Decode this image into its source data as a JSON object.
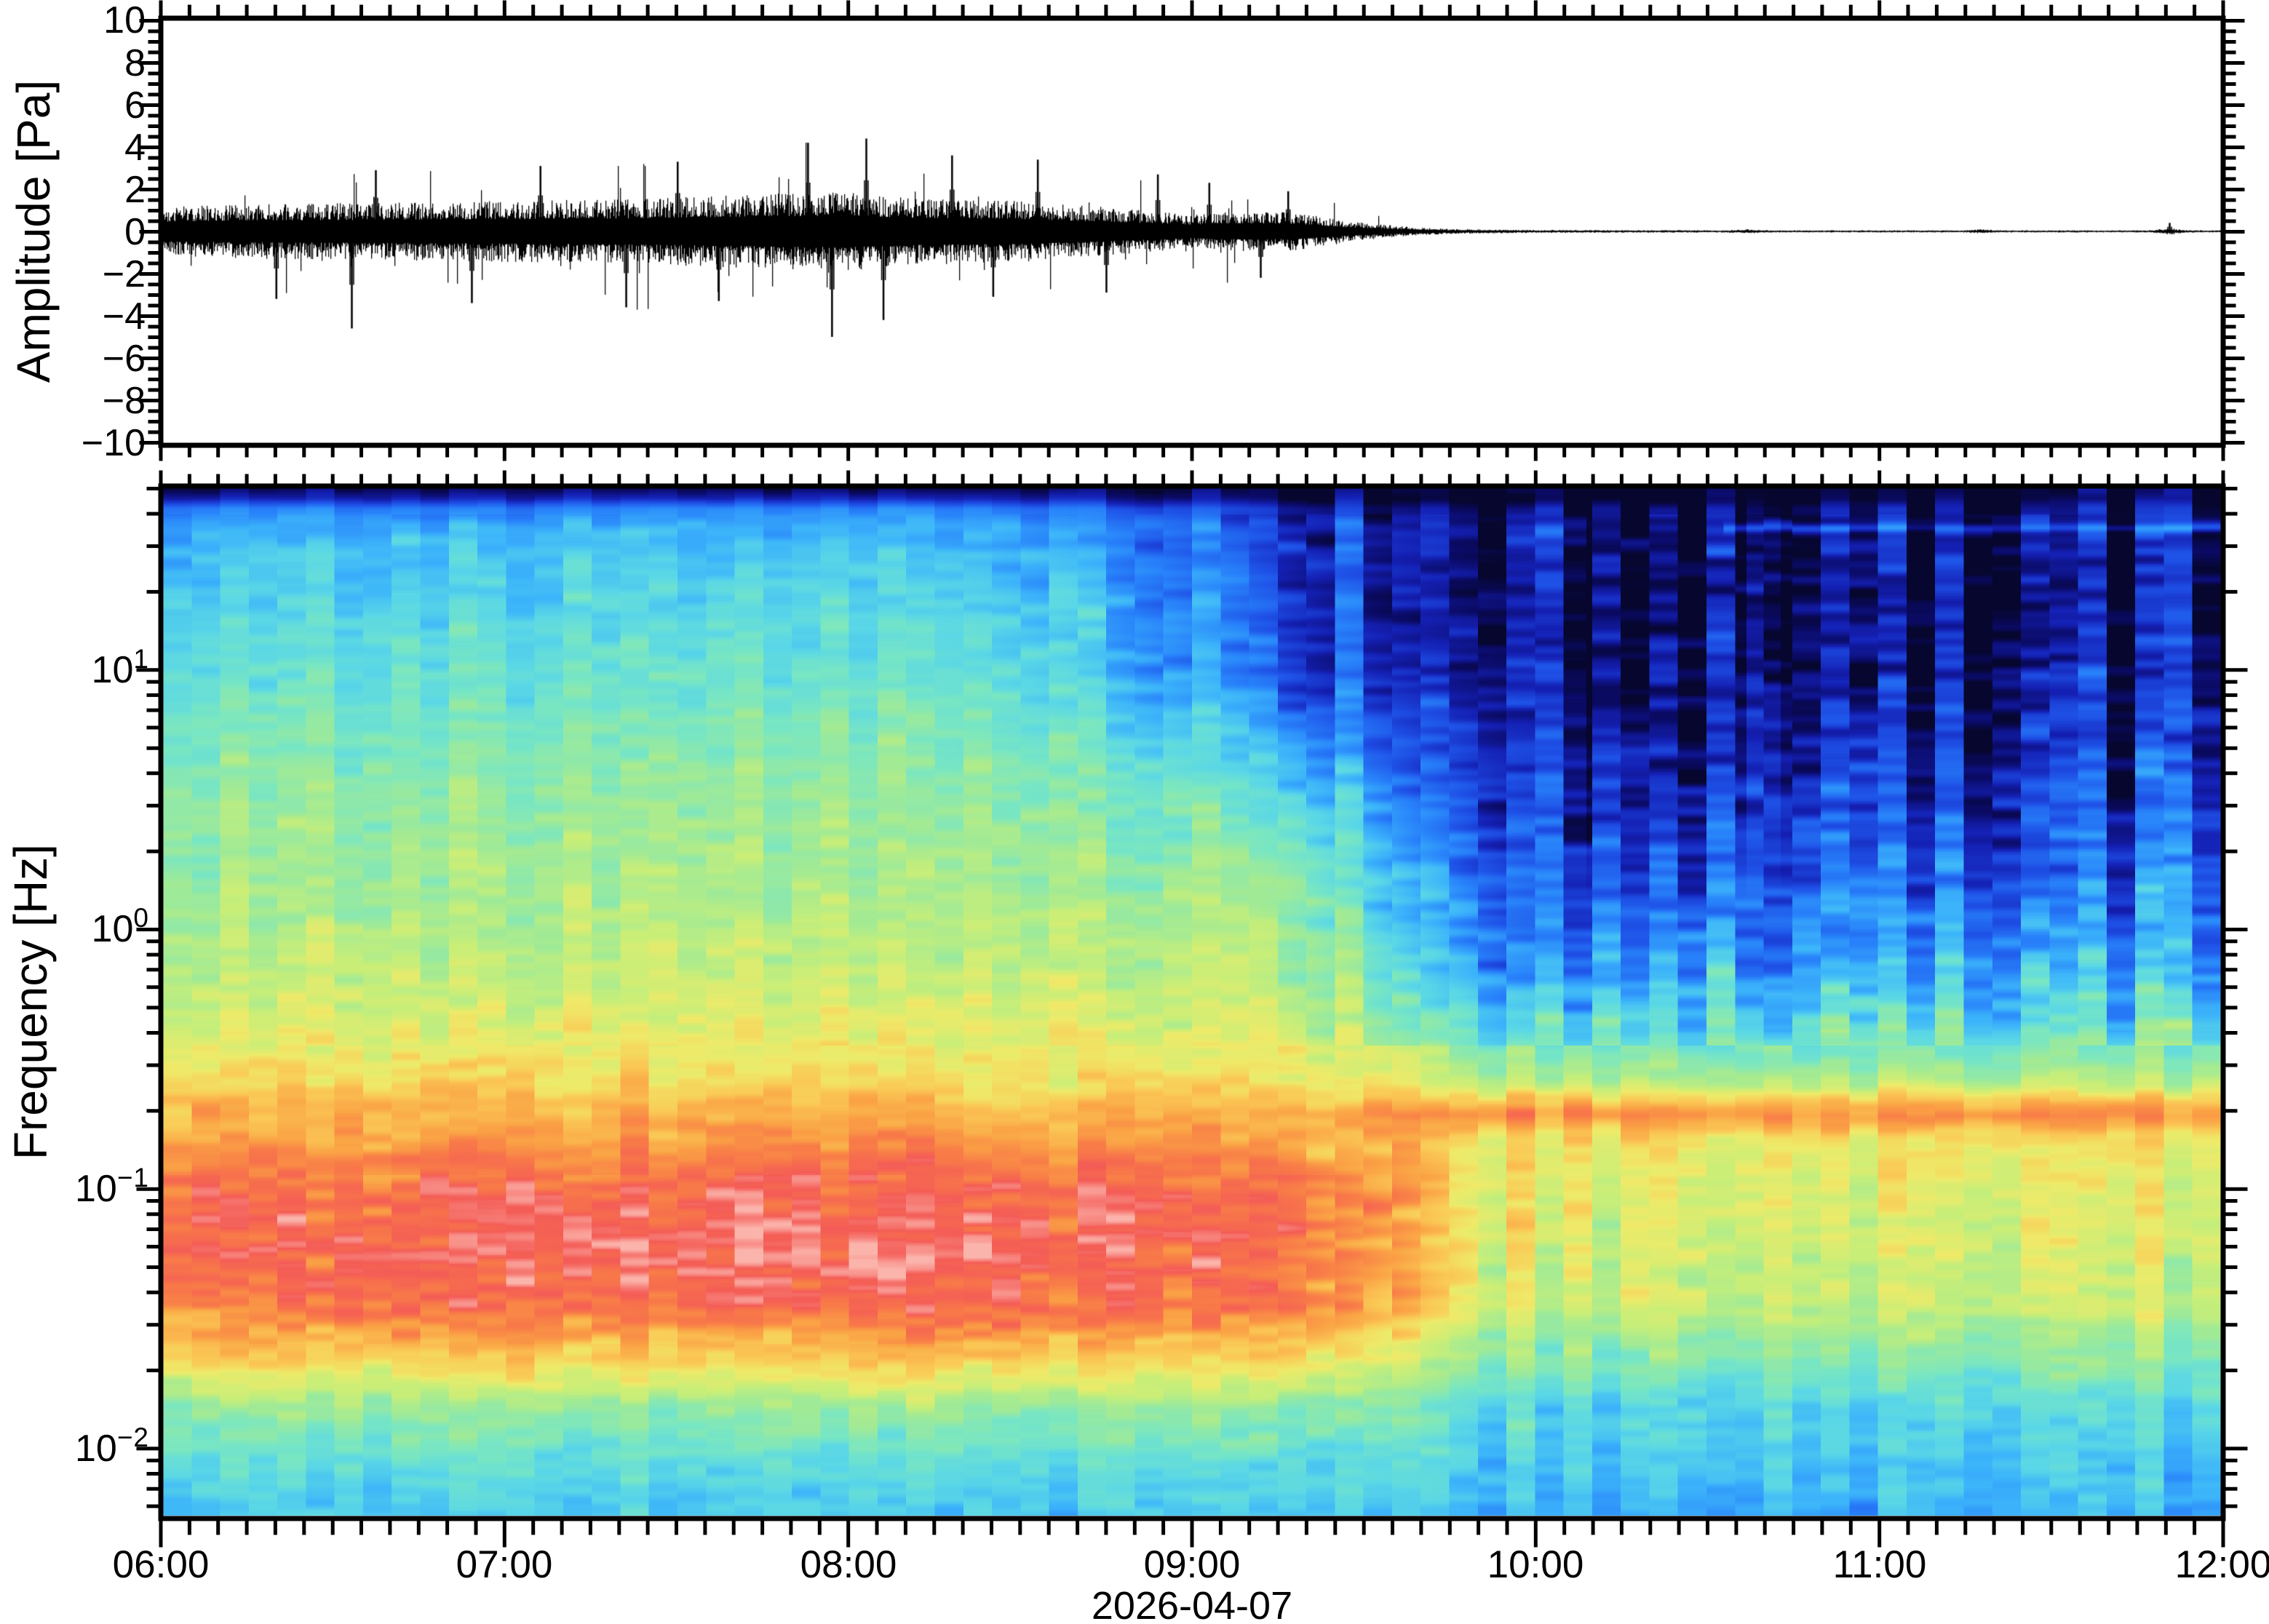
{
  "figure": {
    "background": "#ffffff",
    "frame_color": "#000000",
    "date_label": "2026-04-07"
  },
  "top_panel": {
    "ylabel": "Amplitude [Pa]",
    "ylim": [
      -10,
      10
    ],
    "ytick_major_step": 2,
    "ytick_minor_step": 0.5,
    "yticks": [
      {
        "v": 10,
        "label": "10"
      },
      {
        "v": 8,
        "label": "8"
      },
      {
        "v": 6,
        "label": "6"
      },
      {
        "v": 4,
        "label": "4"
      },
      {
        "v": 2,
        "label": "2"
      },
      {
        "v": 0,
        "label": "0"
      },
      {
        "v": -2,
        "label": "−2"
      },
      {
        "v": -4,
        "label": "−4"
      },
      {
        "v": -6,
        "label": "−6"
      },
      {
        "v": -8,
        "label": "−8"
      },
      {
        "v": -10,
        "label": "−10"
      }
    ]
  },
  "bottom_panel": {
    "ylabel": "Frequency [Hz]",
    "freq_min_hz": 0.0055,
    "freq_max_hz": 50,
    "scale": "log",
    "yticks": [
      {
        "f": 10,
        "base": "10",
        "exp": "1"
      },
      {
        "f": 1,
        "base": "10",
        "exp": "0"
      },
      {
        "f": 0.1,
        "base": "10",
        "exp": "−1"
      },
      {
        "f": 0.01,
        "base": "10",
        "exp": "−2"
      }
    ]
  },
  "x_axis": {
    "start_hour": 6,
    "end_hour": 12,
    "minor_step_minutes": 5,
    "ticks": [
      {
        "h": 6,
        "label": "06:00"
      },
      {
        "h": 7,
        "label": "07:00"
      },
      {
        "h": 8,
        "label": "08:00"
      },
      {
        "h": 9,
        "label": "09:00"
      },
      {
        "h": 10,
        "label": "10:00"
      },
      {
        "h": 11,
        "label": "11:00"
      },
      {
        "h": 12,
        "label": "12:00"
      }
    ],
    "date_label": "2026-04-07"
  },
  "chart_data": [
    {
      "type": "line",
      "name": "infrasound-waveform",
      "ylabel": "Amplitude [Pa]",
      "x_unit": "hour_of_day",
      "x_range": [
        6,
        12
      ],
      "y_range": [
        -10,
        10
      ],
      "line_color": "#000000",
      "envelope_pa": [
        [
          6.0,
          1.15
        ],
        [
          6.25,
          1.3
        ],
        [
          6.6,
          1.35
        ],
        [
          7.0,
          1.45
        ],
        [
          7.4,
          1.55
        ],
        [
          7.8,
          1.8
        ],
        [
          8.0,
          1.85
        ],
        [
          8.2,
          1.6
        ],
        [
          8.5,
          1.45
        ],
        [
          8.75,
          1.15
        ],
        [
          9.0,
          0.8
        ],
        [
          9.15,
          0.95
        ],
        [
          9.3,
          0.9
        ],
        [
          9.45,
          0.5
        ],
        [
          9.6,
          0.25
        ],
        [
          9.75,
          0.12
        ],
        [
          10.0,
          0.07
        ],
        [
          10.5,
          0.055
        ],
        [
          11.0,
          0.05
        ],
        [
          11.5,
          0.05
        ],
        [
          12.0,
          0.05
        ]
      ],
      "spikes_pa": [
        [
          6.33,
          -3.2
        ],
        [
          6.55,
          -4.6
        ],
        [
          6.62,
          2.9
        ],
        [
          6.9,
          -3.4
        ],
        [
          7.1,
          3.1
        ],
        [
          7.35,
          -3.6
        ],
        [
          7.5,
          3.3
        ],
        [
          7.62,
          -3.3
        ],
        [
          7.88,
          4.2
        ],
        [
          7.95,
          -5.0
        ],
        [
          8.05,
          4.4
        ],
        [
          8.1,
          -4.2
        ],
        [
          8.3,
          3.6
        ],
        [
          8.42,
          -3.1
        ],
        [
          8.55,
          3.4
        ],
        [
          8.75,
          -2.9
        ],
        [
          8.9,
          2.7
        ],
        [
          9.05,
          2.3
        ],
        [
          9.2,
          -2.2
        ],
        [
          9.28,
          1.9
        ],
        [
          11.85,
          0.4
        ]
      ],
      "micro_bursts": [
        [
          10.62,
          0.05
        ],
        [
          11.3,
          0.05
        ],
        [
          11.85,
          0.1
        ]
      ]
    },
    {
      "type": "heatmap",
      "name": "spectrogram",
      "ylabel": "Frequency [Hz]",
      "x_unit": "hour_of_day",
      "x_range": [
        6,
        12
      ],
      "freq_range_hz": [
        0.0055,
        50
      ],
      "time_bin_minutes": 5,
      "colormap_stops": [
        [
          0.0,
          "#06062e"
        ],
        [
          0.05,
          "#0a0a64"
        ],
        [
          0.12,
          "#1420b4"
        ],
        [
          0.2,
          "#1e50e6"
        ],
        [
          0.28,
          "#2882fa"
        ],
        [
          0.36,
          "#3cb4fa"
        ],
        [
          0.43,
          "#5ad7e6"
        ],
        [
          0.5,
          "#78e6c3"
        ],
        [
          0.57,
          "#a0ea96"
        ],
        [
          0.63,
          "#c8ee78"
        ],
        [
          0.69,
          "#eeea69"
        ],
        [
          0.75,
          "#fac855"
        ],
        [
          0.81,
          "#faa245"
        ],
        [
          0.87,
          "#f87a48"
        ],
        [
          0.93,
          "#f45c56"
        ],
        [
          0.97,
          "#f8918a"
        ],
        [
          1.0,
          "#fbb4ab"
        ]
      ],
      "base_profile_log10hz_value": [
        [
          -2.26,
          0.4
        ],
        [
          -2.05,
          0.46
        ],
        [
          -1.85,
          0.56
        ],
        [
          -1.65,
          0.74
        ],
        [
          -1.45,
          0.88
        ],
        [
          -1.25,
          0.91
        ],
        [
          -1.05,
          0.9
        ],
        [
          -0.9,
          0.86
        ],
        [
          -0.8,
          0.8
        ],
        [
          -0.72,
          0.77
        ],
        [
          -0.6,
          0.72
        ],
        [
          -0.4,
          0.67
        ],
        [
          -0.2,
          0.63
        ],
        [
          0.0,
          0.6
        ],
        [
          0.3,
          0.57
        ],
        [
          0.6,
          0.54
        ],
        [
          0.9,
          0.49
        ],
        [
          1.1,
          0.45
        ],
        [
          1.3,
          0.42
        ],
        [
          1.45,
          0.39
        ],
        [
          1.55,
          0.35
        ],
        [
          1.62,
          0.28
        ],
        [
          1.66,
          0.12
        ],
        [
          1.7,
          0.03
        ]
      ],
      "decay_profile_log10hz_value": [
        [
          -2.26,
          0.04
        ],
        [
          -2.0,
          0.07
        ],
        [
          -1.6,
          0.22
        ],
        [
          -1.3,
          0.27
        ],
        [
          -1.0,
          0.22
        ],
        [
          -0.85,
          0.15
        ],
        [
          -0.72,
          0.02
        ],
        [
          -0.6,
          0.12
        ],
        [
          -0.4,
          0.2
        ],
        [
          -0.2,
          0.27
        ],
        [
          0.0,
          0.32
        ],
        [
          0.5,
          0.36
        ],
        [
          1.0,
          0.35
        ],
        [
          1.3,
          0.32
        ],
        [
          1.5,
          0.27
        ],
        [
          1.62,
          0.18
        ],
        [
          1.7,
          0.01
        ]
      ],
      "highfreq_decay_ramp_hours": [
        8.2,
        10.0
      ],
      "lowfreq_decay_ramp_hours": [
        9.15,
        10.05
      ],
      "microseism_band": {
        "center_log10hz": -0.7,
        "sigma_log10hz": 0.085,
        "boost_pre": 0.02,
        "boost_post": 0.08
      },
      "eruption_bump": {
        "center_hour": 7.9,
        "sigma_hours": 0.9,
        "amp": 0.05,
        "center_log10hz": -1.2,
        "sigma_log10hz": 0.35
      },
      "dark_episodes": [
        [
          10.15,
          10.62,
          1.0
        ],
        [
          10.72,
          11.5,
          0.85
        ],
        [
          11.5,
          12.01,
          0.5
        ]
      ],
      "narrow_line": {
        "log10hz": 1.545,
        "start_hour": 10.55,
        "amp": 0.16
      },
      "top_dark_band_hz": 45
    }
  ]
}
